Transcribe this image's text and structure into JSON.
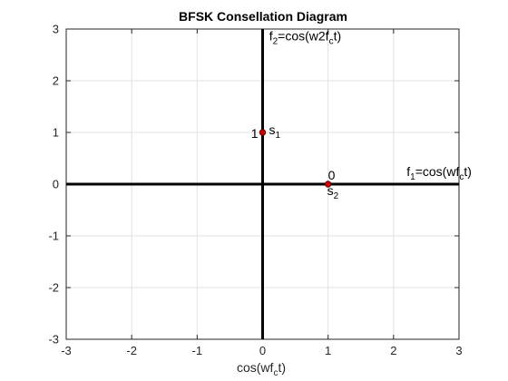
{
  "chart_data": {
    "type": "scatter",
    "title": "BFSK Consellation Diagram",
    "xlabel_main": "cos(wf",
    "xlabel_sub": "c",
    "xlabel_end": "t)",
    "ylabel": "",
    "xlim": [
      -3,
      3
    ],
    "ylim": [
      -3,
      3
    ],
    "xticks": [
      -3,
      -2,
      -1,
      0,
      1,
      2,
      3
    ],
    "yticks": [
      -3,
      -2,
      -1,
      0,
      1,
      2,
      3
    ],
    "grid": true,
    "points": [
      {
        "x": 0,
        "y": 1,
        "bit": "1",
        "sym": "s",
        "sym_sub": "1"
      },
      {
        "x": 1,
        "y": 0,
        "bit": "0",
        "sym": "s",
        "sym_sub": "2"
      }
    ],
    "axis_labels": {
      "f1": {
        "main": "f",
        "sub": "1",
        "rest": "=cos(wf",
        "sub2": "c",
        "end": "t)"
      },
      "f2": {
        "main": "f",
        "sub": "2",
        "rest": "=cos(w2f",
        "sub2": "c",
        "end": "t)"
      }
    },
    "colors": {
      "marker_fill": "#cc0000",
      "marker_edge": "#660000",
      "axis_line": "#000000",
      "grid": "#e1e1e1"
    }
  }
}
